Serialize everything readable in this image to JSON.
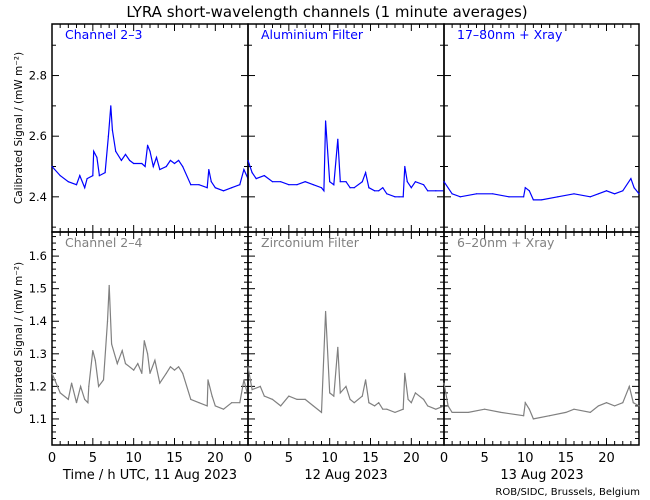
{
  "chart_data": {
    "type": "line",
    "title": "LYRA short-wavelength channels (1 minute averages)",
    "ylabel": "Calibrated Signal / (mW m⁻²)",
    "xlabel_days": [
      "Time / h UTC, 11 Aug 2023",
      "12 Aug 2023",
      "13 Aug 2023"
    ],
    "x_ticks": [
      "0",
      "5",
      "10",
      "15",
      "20"
    ],
    "xlim_hours_per_day": [
      0,
      24
    ],
    "credit": "ROB/SIDC, Brussels, Belgium",
    "rows": [
      {
        "color": "#0000ff",
        "ylim": [
          2.284,
          2.97
        ],
        "y_ticks": [
          "2.4",
          "2.6",
          "2.8"
        ],
        "y_tick_values": [
          2.4,
          2.6,
          2.8
        ],
        "panels": [
          {
            "label": "Channel 2–3",
            "x": [
              0,
              1,
              2,
              3,
              3.4,
              4,
              4.3,
              5,
              5.1,
              5.5,
              5.8,
              6.5,
              6.9,
              7.2,
              7.4,
              7.8,
              8.5,
              9,
              9.5,
              10,
              11,
              11.4,
              11.7,
              12,
              12.4,
              12.8,
              13.2,
              14,
              14.5,
              15,
              15.5,
              16,
              17,
              18,
              19,
              19.2,
              19.5,
              20,
              21,
              22,
              23,
              23.5,
              24
            ],
            "y": [
              2.5,
              2.47,
              2.45,
              2.44,
              2.47,
              2.43,
              2.46,
              2.47,
              2.55,
              2.53,
              2.47,
              2.48,
              2.6,
              2.7,
              2.62,
              2.55,
              2.52,
              2.54,
              2.52,
              2.51,
              2.51,
              2.5,
              2.57,
              2.55,
              2.5,
              2.53,
              2.49,
              2.5,
              2.52,
              2.51,
              2.52,
              2.5,
              2.44,
              2.44,
              2.43,
              2.49,
              2.45,
              2.43,
              2.42,
              2.43,
              2.44,
              2.49,
              2.46
            ]
          },
          {
            "label": "Aluminium Filter",
            "x": [
              0,
              0.5,
              1,
              2,
              3,
              4,
              5,
              6,
              7,
              8,
              9,
              9.3,
              9.5,
              10,
              10.5,
              11,
              11.3,
              12,
              12.5,
              13,
              14,
              14.4,
              14.8,
              15.5,
              16,
              16.5,
              17,
              18,
              18.5,
              19,
              19.2,
              19.5,
              20,
              20.5,
              21.5,
              22,
              23,
              24
            ],
            "y": [
              2.52,
              2.48,
              2.46,
              2.47,
              2.45,
              2.45,
              2.44,
              2.44,
              2.45,
              2.44,
              2.43,
              2.42,
              2.65,
              2.45,
              2.44,
              2.59,
              2.45,
              2.45,
              2.43,
              2.43,
              2.45,
              2.48,
              2.43,
              2.42,
              2.42,
              2.43,
              2.41,
              2.4,
              2.4,
              2.4,
              2.5,
              2.45,
              2.43,
              2.45,
              2.44,
              2.42,
              2.42,
              2.42
            ]
          },
          {
            "label": "17–80nm + Xray",
            "x": [
              0,
              1,
              2,
              4,
              6,
              8,
              9.8,
              10,
              10.5,
              11,
              12,
              14,
              16,
              18,
              19,
              20,
              21,
              22,
              23,
              23.4,
              24
            ],
            "y": [
              2.45,
              2.41,
              2.4,
              2.41,
              2.41,
              2.4,
              2.4,
              2.43,
              2.42,
              2.39,
              2.39,
              2.4,
              2.41,
              2.4,
              2.41,
              2.42,
              2.41,
              2.42,
              2.46,
              2.43,
              2.41
            ]
          }
        ]
      },
      {
        "color": "#808080",
        "ylim": [
          1.02,
          1.674
        ],
        "y_ticks": [
          "1.1",
          "1.2",
          "1.3",
          "1.4",
          "1.5",
          "1.6"
        ],
        "y_tick_values": [
          1.1,
          1.2,
          1.3,
          1.4,
          1.5,
          1.6
        ],
        "panels": [
          {
            "label": "Channel 2–4",
            "x": [
              0,
              1,
              2,
              2.4,
              3,
              3.5,
              4,
              4.4,
              4.5,
              5,
              5.3,
              5.7,
              6.3,
              6.8,
              7,
              7.3,
              8,
              8.6,
              9,
              10,
              10.5,
              11,
              11.3,
              11.7,
              12,
              12.6,
              13.2,
              14,
              14.5,
              15,
              15.5,
              16,
              17,
              18,
              19,
              19.1,
              19.6,
              20,
              21,
              22,
              23,
              23.5,
              24
            ],
            "y": [
              1.24,
              1.18,
              1.16,
              1.21,
              1.15,
              1.2,
              1.16,
              1.15,
              1.2,
              1.31,
              1.28,
              1.2,
              1.22,
              1.4,
              1.51,
              1.33,
              1.27,
              1.31,
              1.27,
              1.25,
              1.27,
              1.24,
              1.34,
              1.3,
              1.24,
              1.28,
              1.21,
              1.24,
              1.26,
              1.25,
              1.26,
              1.24,
              1.16,
              1.15,
              1.14,
              1.22,
              1.17,
              1.14,
              1.13,
              1.15,
              1.15,
              1.22,
              1.17
            ]
          },
          {
            "label": "Zirconium Filter",
            "x": [
              0,
              0.5,
              1.5,
              2,
              3,
              4,
              5,
              6,
              7,
              8,
              9,
              9.5,
              10,
              10.5,
              11,
              11.3,
              12,
              12.5,
              13,
              14,
              14.4,
              14.8,
              15.5,
              16,
              16.5,
              17,
              18,
              19,
              19.2,
              19.6,
              20,
              20.5,
              21.5,
              22,
              23,
              24
            ],
            "y": [
              1.26,
              1.19,
              1.2,
              1.17,
              1.16,
              1.14,
              1.17,
              1.16,
              1.16,
              1.14,
              1.12,
              1.43,
              1.18,
              1.17,
              1.32,
              1.18,
              1.2,
              1.16,
              1.15,
              1.17,
              1.22,
              1.15,
              1.14,
              1.15,
              1.13,
              1.13,
              1.12,
              1.13,
              1.24,
              1.16,
              1.15,
              1.18,
              1.16,
              1.14,
              1.13,
              1.14
            ]
          },
          {
            "label": "6–20nm + Xray",
            "x": [
              0,
              0.5,
              1,
              3,
              5,
              7,
              9.8,
              10,
              10.5,
              11,
              13,
              15,
              16,
              18,
              19,
              20,
              21,
              22,
              22.8,
              23.3,
              24
            ],
            "y": [
              1.21,
              1.14,
              1.12,
              1.12,
              1.13,
              1.12,
              1.11,
              1.15,
              1.13,
              1.1,
              1.11,
              1.12,
              1.13,
              1.12,
              1.14,
              1.15,
              1.14,
              1.15,
              1.2,
              1.15,
              1.14
            ]
          }
        ]
      }
    ]
  }
}
